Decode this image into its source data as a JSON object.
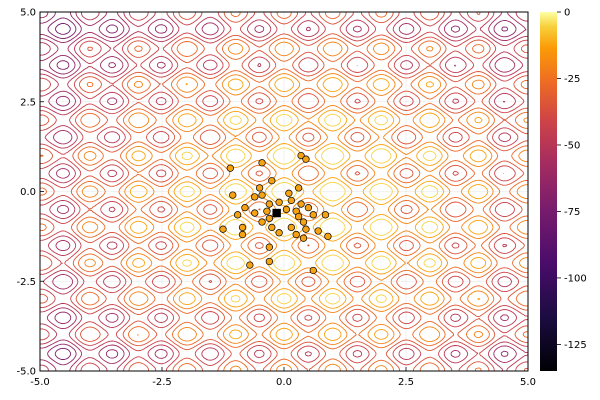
{
  "chart_data": {
    "type": "scatter",
    "title": "",
    "xlabel": "",
    "ylabel": "",
    "xlim": [
      -5,
      5
    ],
    "ylim": [
      -5,
      5
    ],
    "x_ticks": [
      "-5.0",
      "-2.5",
      "0.0",
      "2.5",
      "5.0"
    ],
    "y_ticks": [
      "-5.0",
      "-2.5",
      "0.0",
      "2.5",
      "5.0"
    ],
    "grid": true,
    "legend": "none",
    "background": "contour",
    "colorbar": {
      "colormap": "inferno",
      "range": [
        -135,
        0
      ],
      "ticks": [
        "0",
        "-25",
        "-50",
        "-75",
        "-100",
        "-125"
      ]
    },
    "colors": {
      "points": "#f5a314",
      "point_edge": "#000000",
      "best": "#000000"
    },
    "series": [
      {
        "marker": "circle",
        "points": [
          [
            -0.45,
            0.8
          ],
          [
            0.35,
            1.0
          ],
          [
            0.45,
            0.9
          ],
          [
            -1.1,
            0.65
          ],
          [
            -0.25,
            0.3
          ],
          [
            -0.5,
            0.1
          ],
          [
            0.3,
            0.1
          ],
          [
            -0.45,
            -0.1
          ],
          [
            -0.6,
            -0.15
          ],
          [
            -1.05,
            -0.1
          ],
          [
            0.1,
            -0.05
          ],
          [
            0.15,
            -0.25
          ],
          [
            -0.3,
            -0.35
          ],
          [
            -0.1,
            -0.3
          ],
          [
            0.05,
            -0.5
          ],
          [
            0.35,
            -0.35
          ],
          [
            0.5,
            -0.45
          ],
          [
            0.6,
            -0.65
          ],
          [
            0.25,
            -0.55
          ],
          [
            -0.35,
            -0.55
          ],
          [
            -0.6,
            -0.6
          ],
          [
            -0.8,
            -0.45
          ],
          [
            -0.95,
            -0.65
          ],
          [
            -0.3,
            -0.75
          ],
          [
            -0.45,
            -0.85
          ],
          [
            0.3,
            -0.7
          ],
          [
            0.85,
            -0.65
          ],
          [
            -0.25,
            -1.0
          ],
          [
            0.4,
            -0.85
          ],
          [
            0.45,
            -1.05
          ],
          [
            -0.85,
            -1.0
          ],
          [
            -1.25,
            -1.05
          ],
          [
            0.15,
            -1.0
          ],
          [
            -0.1,
            -1.15
          ],
          [
            0.25,
            -1.2
          ],
          [
            0.4,
            -1.3
          ],
          [
            0.9,
            -1.25
          ],
          [
            -0.85,
            -1.2
          ],
          [
            0.7,
            -1.1
          ],
          [
            -0.3,
            -1.55
          ],
          [
            -0.3,
            -1.95
          ],
          [
            -0.7,
            -2.05
          ],
          [
            0.6,
            -2.2
          ]
        ]
      },
      {
        "marker": "square",
        "points": [
          [
            -0.15,
            -0.6
          ]
        ]
      }
    ]
  }
}
